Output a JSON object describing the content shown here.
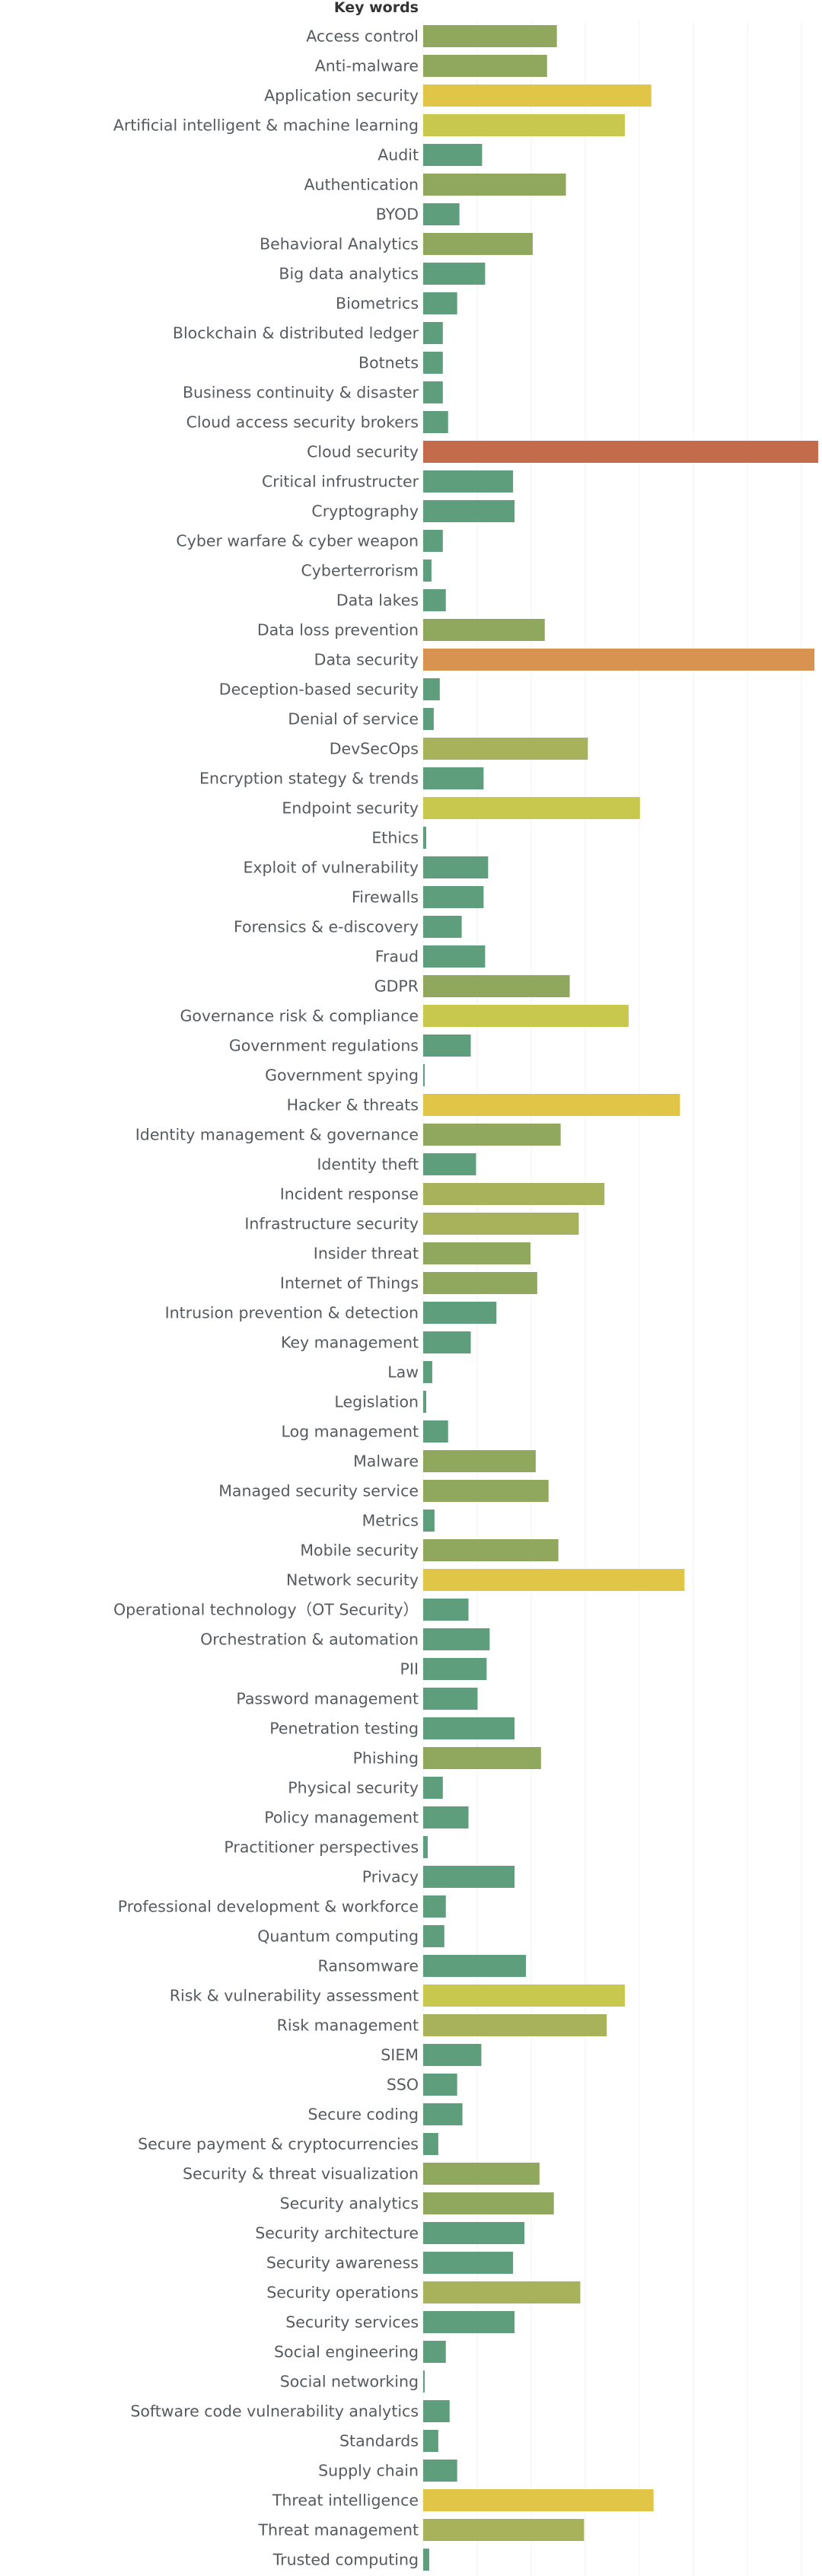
{
  "chart_data": {
    "type": "bar",
    "orientation": "horizontal",
    "header": "Key words",
    "xlim": [
      0,
      528
    ],
    "grid": true,
    "legend": "none",
    "categories": [
      "Access control",
      "Anti-malware",
      "Application security",
      "Artificial intelligent & machine learning",
      "Audit",
      "Authentication",
      "BYOD",
      "Behavioral Analytics",
      "Big data analytics",
      "Biometrics",
      "Blockchain & distributed ledger",
      "Botnets",
      "Business continuity & disaster",
      "Cloud access security brokers",
      "Cloud security",
      "Critical infrustructer",
      "Cryptography",
      "Cyber warfare & cyber weapon",
      "Cyberterrorism",
      "Data lakes",
      "Data loss prevention",
      "Data security",
      "Deception-based security",
      "Denial of service",
      "DevSecOps",
      "Encryption stategy & trends",
      "Endpoint security",
      "Ethics",
      "Exploit of vulnerability",
      "Firewalls",
      "Forensics & e-discovery",
      "Fraud",
      "GDPR",
      "Governance risk & compliance",
      "Government regulations",
      "Government spying",
      "Hacker & threats",
      "Identity management & governance",
      "Identity theft",
      "Incident response",
      "Infrastructure security",
      "Insider threat",
      "Internet of Things",
      "Intrusion prevention & detection",
      "Key management",
      "Law",
      "Legislation",
      "Log management",
      "Malware",
      "Managed security service",
      "Metrics",
      "Mobile security",
      "Network security",
      "Operational technology（OT Security）",
      "Orchestration & automation",
      "PII",
      "Password management",
      "Penetration testing",
      "Phishing",
      "Physical security",
      "Policy management",
      "Practitioner perspectives",
      "Privacy",
      "Professional development & workforce",
      "Quantum computing",
      "Ransomware",
      "Risk & vulnerability assessment",
      "Risk management",
      "SIEM",
      "SSO",
      "Secure coding",
      "Secure payment & cryptocurrencies",
      "Security & threat visualization",
      "Security analytics",
      "Security architecture",
      "Security awareness",
      "Security operations",
      "Security services",
      "Social engineering",
      "Social networking",
      "Software code vulnerability analytics",
      "Standards",
      "Supply chain",
      "Threat intelligence",
      "Threat management",
      "Trusted computing"
    ],
    "values": [
      177,
      164,
      302,
      267,
      78,
      189,
      48,
      145,
      82,
      45,
      26,
      26,
      26,
      33,
      523,
      119,
      121,
      26,
      11,
      30,
      161,
      518,
      22,
      14,
      218,
      80,
      287,
      4,
      86,
      80,
      51,
      82,
      194,
      272,
      63,
      2,
      340,
      182,
      70,
      240,
      206,
      142,
      151,
      97,
      63,
      12,
      4,
      33,
      149,
      166,
      15,
      179,
      346,
      60,
      88,
      84,
      72,
      121,
      156,
      26,
      60,
      6,
      121,
      30,
      28,
      136,
      267,
      243,
      77,
      45,
      52,
      20,
      154,
      173,
      134,
      119,
      208,
      121,
      30,
      2,
      35,
      20,
      45,
      305,
      213,
      8
    ],
    "colors": {
      "low": "#5e9e7c",
      "mid": "#8fa85e",
      "high": "#c9c84e",
      "peak_yellow": "#e0c547",
      "peak_orange": "#d99350",
      "peak_red": "#c46b4c"
    }
  }
}
